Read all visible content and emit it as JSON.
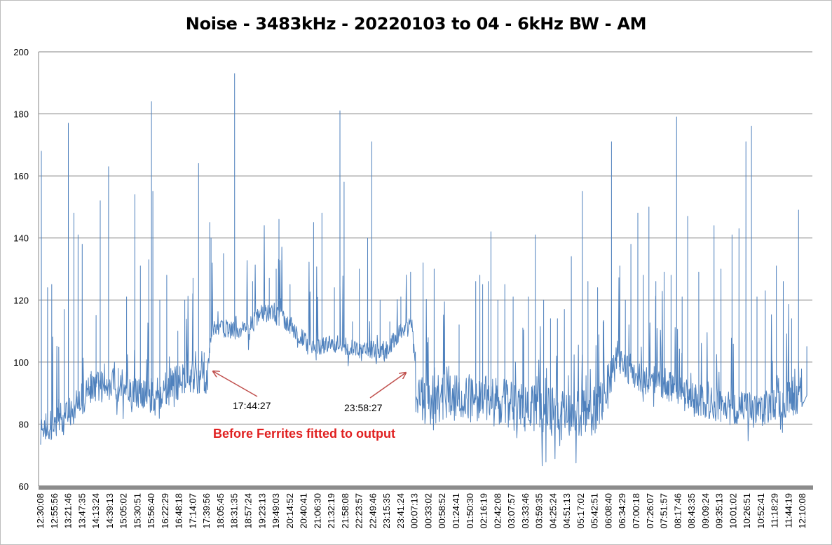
{
  "chart_data": {
    "type": "line",
    "title": "Noise - 3483kHz - 20220103 to 04 - 6kHz BW - AM",
    "xlabel": "",
    "ylabel": "",
    "ylim": [
      60,
      200
    ],
    "yticks": [
      60,
      80,
      100,
      120,
      140,
      160,
      180,
      200
    ],
    "grid": true,
    "legend": "none",
    "color": "#4f81bd",
    "x_tick_labels": [
      "12:30:08",
      "12:55:56",
      "13:21:46",
      "13:47:35",
      "14:13:24",
      "14:39:13",
      "15:05:02",
      "15:30:51",
      "15:56:40",
      "16:22:29",
      "16:48:18",
      "17:14:07",
      "17:39:56",
      "18:05:45",
      "18:31:35",
      "18:57:24",
      "19:23:13",
      "19:49:03",
      "20:14:52",
      "20:40:41",
      "21:06:30",
      "21:32:19",
      "21:58:08",
      "22:23:57",
      "22:49:46",
      "23:15:35",
      "23:41:24",
      "00:07:13",
      "00:33:02",
      "00:58:52",
      "01:24:41",
      "01:50:30",
      "02:16:19",
      "02:42:08",
      "03:07:57",
      "03:33:46",
      "03:59:35",
      "04:25:24",
      "04:51:13",
      "05:17:02",
      "05:42:51",
      "06:08:40",
      "06:34:29",
      "07:00:18",
      "07:26:07",
      "07:51:57",
      "08:17:46",
      "08:43:35",
      "09:09:24",
      "09:35:13",
      "10:01:02",
      "10:26:51",
      "10:52:41",
      "11:18:29",
      "11:44:19",
      "12:10:08"
    ],
    "baseline": [
      [
        0,
        78
      ],
      [
        1,
        80
      ],
      [
        2,
        83
      ],
      [
        3,
        88
      ],
      [
        4,
        92
      ],
      [
        5,
        93
      ],
      [
        6,
        92
      ],
      [
        7,
        90
      ],
      [
        8,
        89
      ],
      [
        9,
        91
      ],
      [
        10,
        94
      ],
      [
        11,
        96
      ],
      [
        12,
        94
      ],
      [
        12.4,
        112
      ],
      [
        13,
        111
      ],
      [
        14,
        110
      ],
      [
        15,
        111
      ],
      [
        16,
        116
      ],
      [
        17,
        115
      ],
      [
        18,
        112
      ],
      [
        19,
        107
      ],
      [
        20,
        105
      ],
      [
        21,
        106
      ],
      [
        22,
        105
      ],
      [
        23,
        105
      ],
      [
        24,
        104
      ],
      [
        25,
        104
      ],
      [
        26,
        110
      ],
      [
        26.8,
        114
      ],
      [
        27.1,
        88
      ],
      [
        28,
        88
      ],
      [
        29,
        89
      ],
      [
        30,
        88
      ],
      [
        31,
        88
      ],
      [
        32,
        88
      ],
      [
        33,
        87
      ],
      [
        34,
        86
      ],
      [
        35,
        85
      ],
      [
        36,
        84
      ],
      [
        37,
        84
      ],
      [
        38,
        84
      ],
      [
        39,
        84
      ],
      [
        40,
        84
      ],
      [
        41,
        92
      ],
      [
        41.6,
        101
      ],
      [
        42,
        100
      ],
      [
        43,
        96
      ],
      [
        44,
        94
      ],
      [
        45,
        93
      ],
      [
        46,
        91
      ],
      [
        47,
        88
      ],
      [
        48,
        87
      ],
      [
        49,
        86
      ],
      [
        50,
        85
      ],
      [
        51,
        85
      ],
      [
        52,
        84
      ],
      [
        53,
        87
      ],
      [
        54,
        88
      ],
      [
        55,
        90
      ],
      [
        55.8,
        88
      ]
    ],
    "noise": [
      [
        0,
        5
      ],
      [
        12,
        6
      ],
      [
        12.4,
        3
      ],
      [
        26.8,
        3
      ],
      [
        27.1,
        8
      ],
      [
        41,
        8
      ],
      [
        41.6,
        4
      ],
      [
        42,
        5
      ],
      [
        55.8,
        6
      ]
    ],
    "peaks": [
      [
        0.05,
        168
      ],
      [
        0.5,
        124
      ],
      [
        0.8,
        125
      ],
      [
        1.3,
        88
      ],
      [
        1.7,
        117
      ],
      [
        2.0,
        177
      ],
      [
        2.4,
        148
      ],
      [
        2.7,
        141
      ],
      [
        3.0,
        138
      ],
      [
        3.6,
        96
      ],
      [
        4.0,
        115
      ],
      [
        4.3,
        152
      ],
      [
        4.9,
        163
      ],
      [
        5.6,
        98
      ],
      [
        6.2,
        121
      ],
      [
        6.8,
        154
      ],
      [
        7.2,
        131
      ],
      [
        7.8,
        133
      ],
      [
        8.0,
        184
      ],
      [
        8.1,
        155
      ],
      [
        8.6,
        120
      ],
      [
        9.1,
        128
      ],
      [
        9.9,
        110
      ],
      [
        10.4,
        120
      ],
      [
        11.0,
        127
      ],
      [
        11.4,
        164
      ],
      [
        11.8,
        103
      ],
      [
        12.2,
        145
      ],
      [
        12.3,
        140
      ],
      [
        13.2,
        135
      ],
      [
        14.0,
        193
      ],
      [
        15.3,
        126
      ],
      [
        16.5,
        127
      ],
      [
        17.0,
        130
      ],
      [
        17.2,
        146
      ],
      [
        18.0,
        125
      ],
      [
        19.7,
        145
      ],
      [
        20.3,
        148
      ],
      [
        21.2,
        124
      ],
      [
        21.6,
        181
      ],
      [
        21.9,
        158
      ],
      [
        22.5,
        113
      ],
      [
        23.0,
        130
      ],
      [
        23.6,
        140
      ],
      [
        23.9,
        171
      ],
      [
        24.5,
        120
      ],
      [
        25.2,
        113
      ],
      [
        26.0,
        121
      ],
      [
        26.7,
        124
      ],
      [
        27.6,
        132
      ],
      [
        28.4,
        130
      ],
      [
        30.2,
        112
      ],
      [
        31.4,
        126
      ],
      [
        31.7,
        128
      ],
      [
        31.9,
        125
      ],
      [
        32.3,
        126
      ],
      [
        32.5,
        142
      ],
      [
        33.0,
        120
      ],
      [
        33.5,
        125
      ],
      [
        34.1,
        121
      ],
      [
        34.8,
        111
      ],
      [
        35.2,
        121
      ],
      [
        35.7,
        141
      ],
      [
        36.3,
        120
      ],
      [
        36.8,
        114
      ],
      [
        37.3,
        114
      ],
      [
        37.8,
        117
      ],
      [
        38.3,
        134
      ],
      [
        39.1,
        155
      ],
      [
        39.5,
        126
      ],
      [
        40.2,
        124
      ],
      [
        40.6,
        113
      ],
      [
        41.2,
        171
      ],
      [
        41.8,
        131
      ],
      [
        42.2,
        120
      ],
      [
        42.6,
        138
      ],
      [
        43.1,
        148
      ],
      [
        43.5,
        128
      ],
      [
        43.9,
        150
      ],
      [
        44.4,
        126
      ],
      [
        45.0,
        129
      ],
      [
        45.5,
        128
      ],
      [
        45.9,
        179
      ],
      [
        46.3,
        121
      ],
      [
        46.7,
        147
      ],
      [
        47.5,
        129
      ],
      [
        48.6,
        144
      ],
      [
        49.1,
        130
      ],
      [
        49.9,
        141
      ],
      [
        50.4,
        143
      ],
      [
        50.9,
        171
      ],
      [
        51.3,
        176
      ],
      [
        51.7,
        121
      ],
      [
        52.3,
        123
      ],
      [
        53.1,
        131
      ],
      [
        53.6,
        126
      ],
      [
        54.2,
        114
      ],
      [
        54.7,
        149
      ],
      [
        55.3,
        105
      ]
    ],
    "annotations": [
      {
        "text": "17:44:27",
        "x": 13.2
      },
      {
        "text": "23:58:27",
        "x": 27.2
      }
    ],
    "note": "Before Ferrites fitted to output"
  }
}
